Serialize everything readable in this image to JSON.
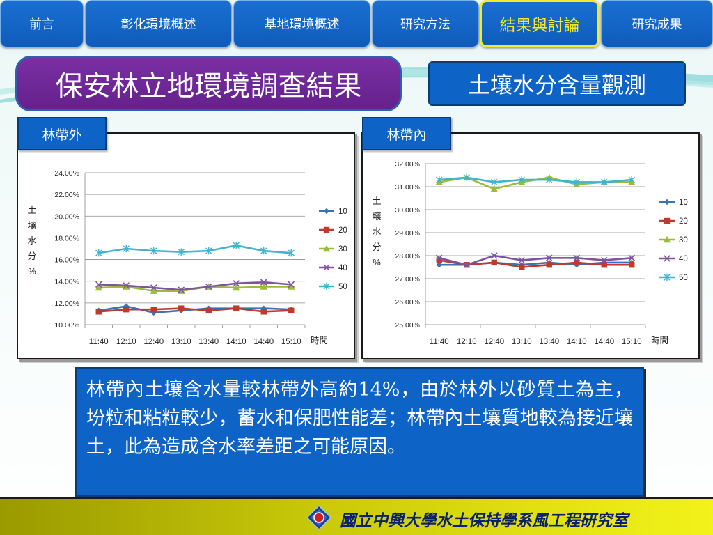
{
  "nav": {
    "tabs": [
      {
        "label": "前言"
      },
      {
        "label": "彰化環境概述"
      },
      {
        "label": "基地環境概述"
      },
      {
        "label": "研究方法"
      },
      {
        "label": "結果與討論",
        "active": true
      },
      {
        "label": "研究成果"
      }
    ]
  },
  "title": "保安林立地環境調查結果",
  "subtitle": "土壤水分含量觀測",
  "colors": {
    "series_10": "#3a72b5",
    "series_20": "#c0392b",
    "series_30": "#9bbb3a",
    "series_40": "#7e53a0",
    "series_50": "#3fb3cf"
  },
  "chart_data": [
    {
      "type": "line",
      "panel_label": "林帶外",
      "ylabel": "土壤水分%",
      "xlabel": "時間",
      "categories": [
        "11:40",
        "12:10",
        "12:40",
        "13:10",
        "13:40",
        "14:10",
        "14:40",
        "15:10"
      ],
      "ylim": [
        0.1,
        0.24
      ],
      "yticks": [
        "24.00%",
        "22.00%",
        "20.00%",
        "18.00%",
        "16.00%",
        "14.00%",
        "12.00%",
        "10.00%"
      ],
      "grid": true,
      "legend": "right",
      "series": [
        {
          "name": "10",
          "marker": "diamond",
          "values": [
            0.113,
            0.117,
            0.111,
            0.113,
            0.115,
            0.115,
            0.115,
            0.114
          ]
        },
        {
          "name": "20",
          "marker": "square",
          "values": [
            0.112,
            0.114,
            0.114,
            0.115,
            0.113,
            0.115,
            0.112,
            0.113
          ]
        },
        {
          "name": "30",
          "marker": "triangle",
          "values": [
            0.134,
            0.135,
            0.131,
            0.131,
            0.135,
            0.134,
            0.135,
            0.135
          ]
        },
        {
          "name": "40",
          "marker": "x",
          "values": [
            0.137,
            0.136,
            0.134,
            0.132,
            0.135,
            0.138,
            0.139,
            0.137
          ]
        },
        {
          "name": "50",
          "marker": "star",
          "values": [
            0.166,
            0.17,
            0.168,
            0.167,
            0.168,
            0.173,
            0.168,
            0.166
          ]
        }
      ]
    },
    {
      "type": "line",
      "panel_label": "林帶內",
      "ylabel": "土壤水分%",
      "xlabel": "時間",
      "categories": [
        "11:40",
        "12:10",
        "12:40",
        "13:10",
        "13:40",
        "14:10",
        "14:40",
        "15:10"
      ],
      "ylim": [
        0.25,
        0.32
      ],
      "yticks": [
        "32.00%",
        "31.00%",
        "30.00%",
        "29.00%",
        "28.00%",
        "27.00%",
        "26.00%",
        "25.00%"
      ],
      "grid": true,
      "legend": "right",
      "series": [
        {
          "name": "10",
          "marker": "diamond",
          "values": [
            0.276,
            0.276,
            0.277,
            0.276,
            0.277,
            0.276,
            0.277,
            0.277
          ]
        },
        {
          "name": "20",
          "marker": "square",
          "values": [
            0.278,
            0.276,
            0.277,
            0.275,
            0.276,
            0.277,
            0.276,
            0.276
          ]
        },
        {
          "name": "30",
          "marker": "triangle",
          "values": [
            0.312,
            0.314,
            0.309,
            0.312,
            0.314,
            0.311,
            0.312,
            0.312
          ]
        },
        {
          "name": "40",
          "marker": "x",
          "values": [
            0.279,
            0.276,
            0.28,
            0.278,
            0.279,
            0.279,
            0.278,
            0.279
          ]
        },
        {
          "name": "50",
          "marker": "star",
          "values": [
            0.313,
            0.314,
            0.312,
            0.313,
            0.313,
            0.312,
            0.312,
            0.313
          ]
        }
      ]
    }
  ],
  "note": "林帶內土壤含水量較林帶外高約14%，由於林外以砂質土為主，坋粒和粘粒較少，蓄水和保肥性能差；林帶內土壤質地較為接近壤土，此為造成含水率差距之可能原因。",
  "footer": {
    "institution": "國立中興大學水土保持學系風工程研究室"
  }
}
